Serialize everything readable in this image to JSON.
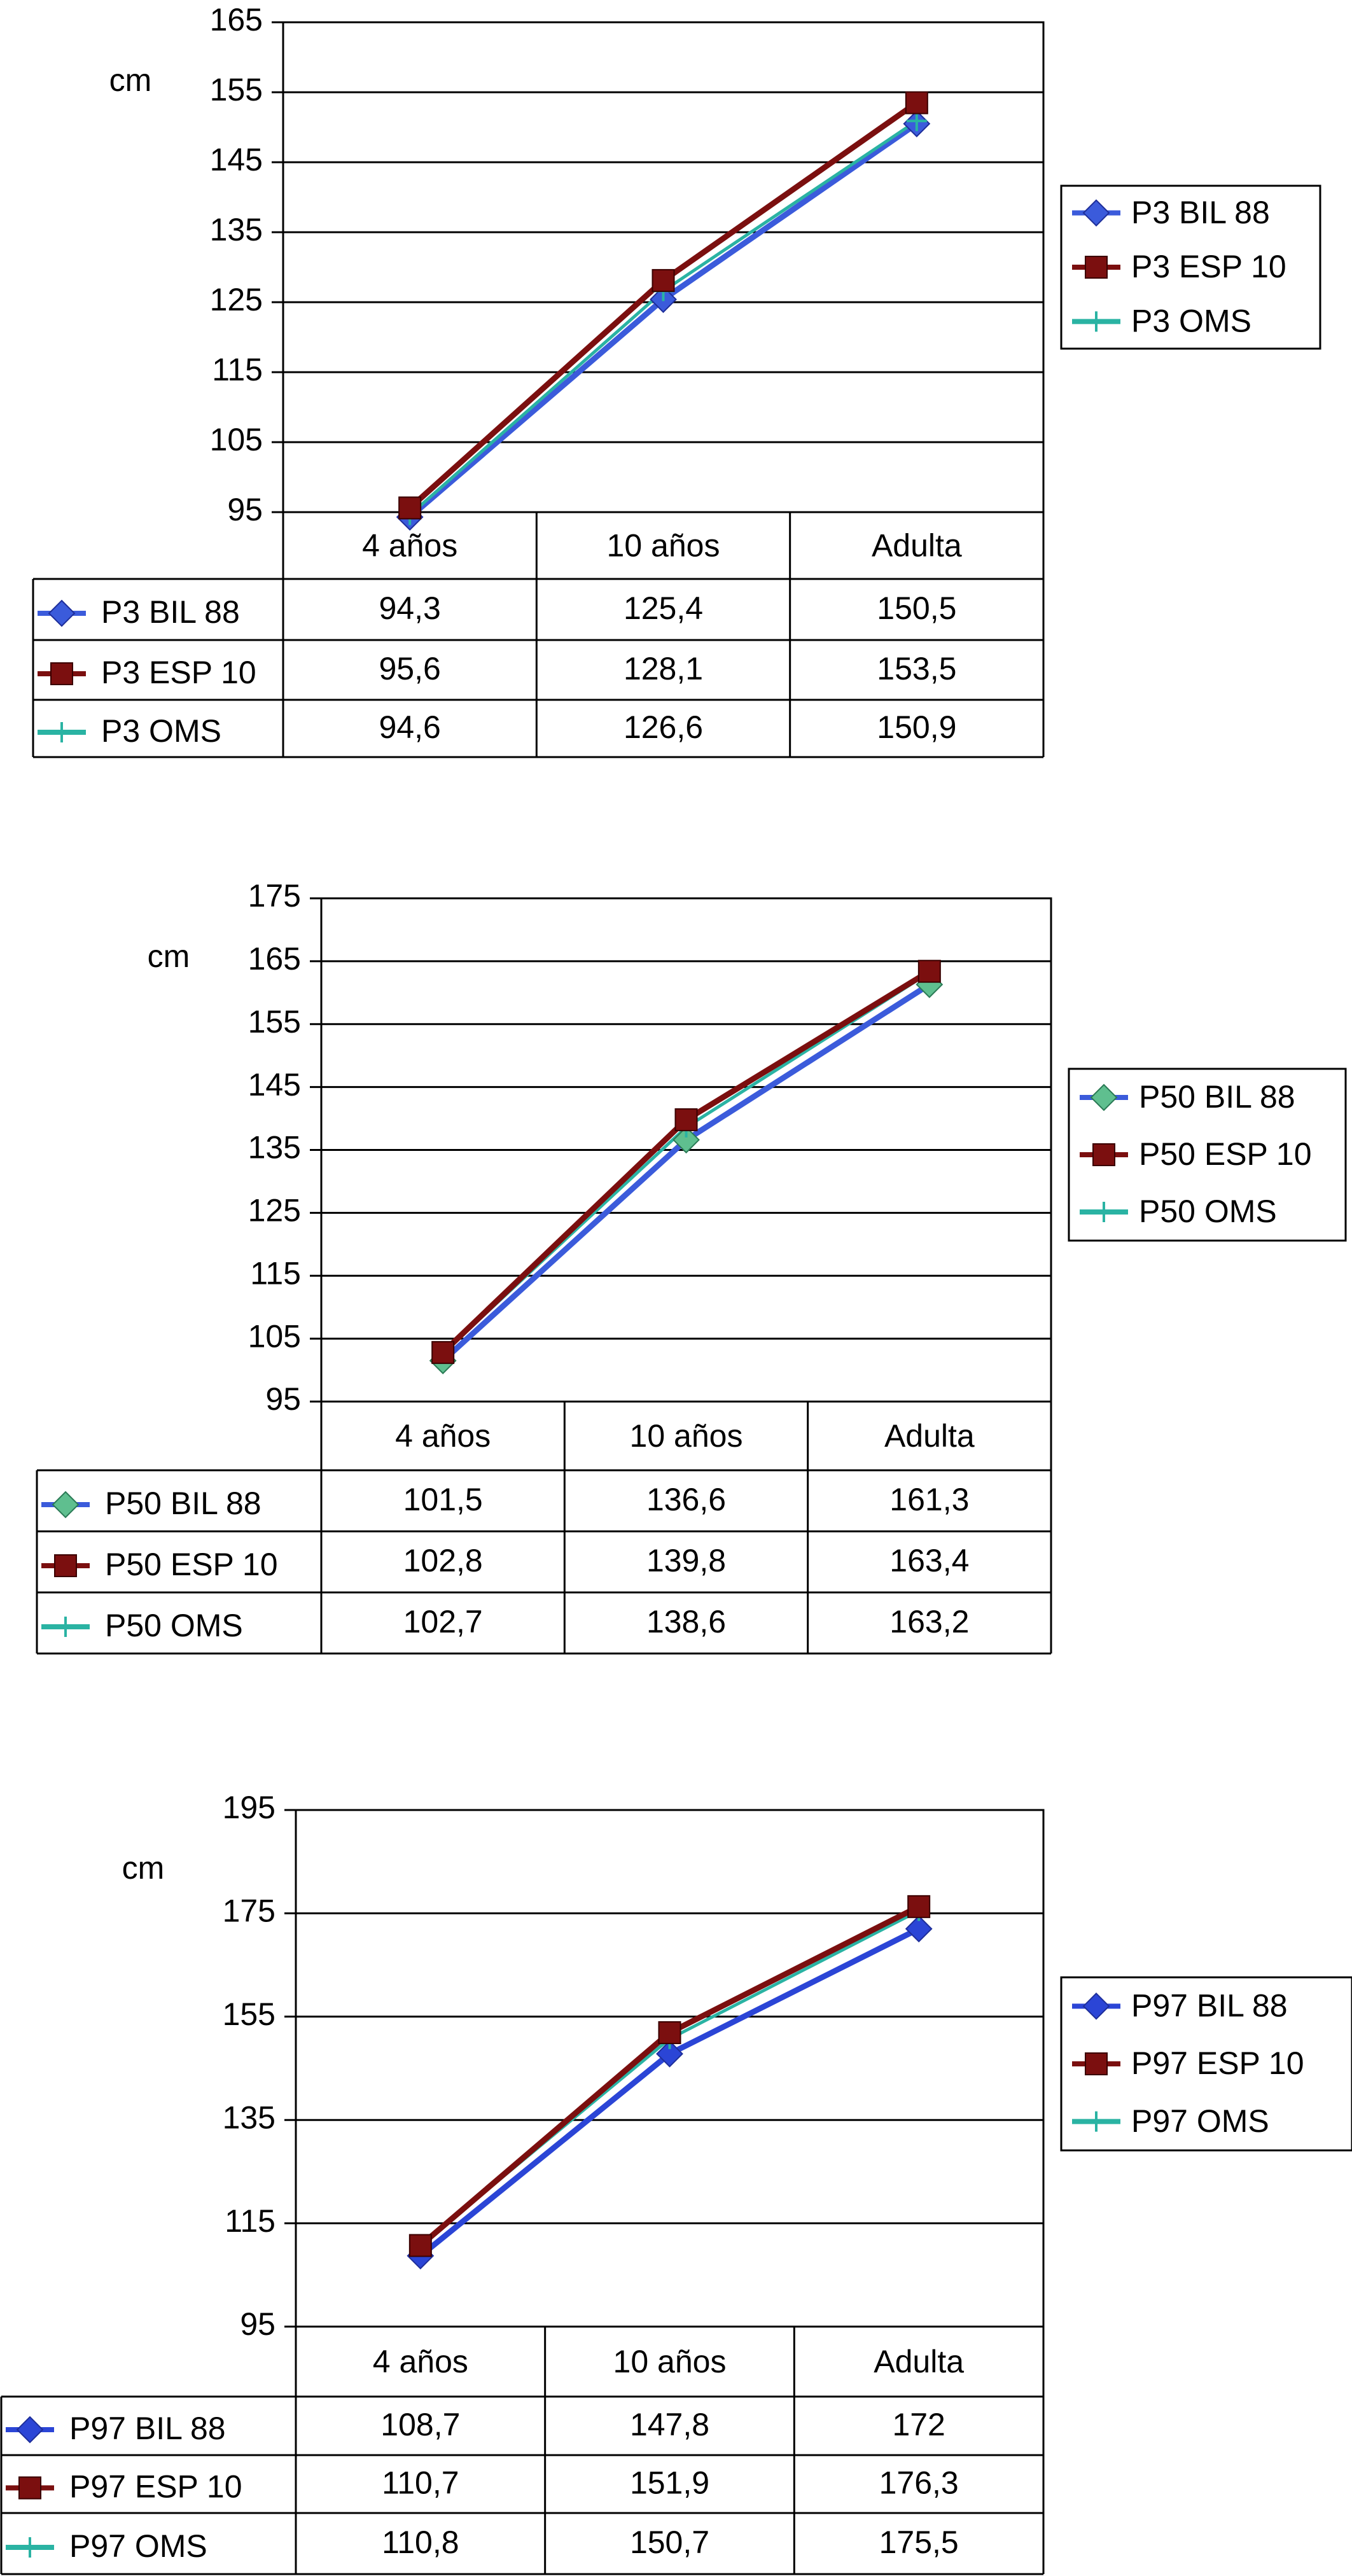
{
  "chart_data": [
    {
      "type": "line",
      "ylabel": "cm",
      "ylim": [
        95,
        165
      ],
      "yticks": [
        "165",
        "155",
        "145",
        "135",
        "125",
        "115",
        "105",
        "95"
      ],
      "categories": [
        "4 años",
        "10 años",
        "Adulta"
      ],
      "grid": true,
      "legend_placement": "right",
      "series": [
        {
          "name": "P3 BIL 88",
          "values": [
            94.3,
            125.4,
            150.5
          ],
          "labels": [
            "94,3",
            "125,4",
            "150,5"
          ],
          "color": "#3b5bdb",
          "marker": "diamond"
        },
        {
          "name": "P3 ESP 10",
          "values": [
            95.6,
            128.1,
            153.5
          ],
          "labels": [
            "95,6",
            "128,1",
            "153,5"
          ],
          "color": "#7b0f0f",
          "marker": "square"
        },
        {
          "name": "P3 OMS",
          "values": [
            94.6,
            126.6,
            150.9
          ],
          "labels": [
            "94,6",
            "126,6",
            "150,9"
          ],
          "color": "#2ab3a3",
          "marker": "plus"
        }
      ]
    },
    {
      "type": "line",
      "ylabel": "cm",
      "ylim": [
        95,
        175
      ],
      "yticks": [
        "175",
        "165",
        "155",
        "145",
        "135",
        "125",
        "115",
        "105",
        "95"
      ],
      "categories": [
        "4 años",
        "10 años",
        "Adulta"
      ],
      "grid": true,
      "legend_placement": "right",
      "series": [
        {
          "name": "P50 BIL 88",
          "values": [
            101.5,
            136.6,
            161.3
          ],
          "labels": [
            "101,5",
            "136,6",
            "161,3"
          ],
          "color": "#3b5bdb",
          "marker": "diamond-green"
        },
        {
          "name": "P50 ESP 10",
          "values": [
            102.8,
            139.8,
            163.4
          ],
          "labels": [
            "102,8",
            "139,8",
            "163,4"
          ],
          "color": "#7b0f0f",
          "marker": "square"
        },
        {
          "name": "P50 OMS",
          "values": [
            102.7,
            138.6,
            163.2
          ],
          "labels": [
            "102,7",
            "138,6",
            "163,2"
          ],
          "color": "#2ab3a3",
          "marker": "plus"
        }
      ]
    },
    {
      "type": "line",
      "ylabel": "cm",
      "ylim": [
        95,
        195
      ],
      "yticks": [
        "195",
        "175",
        "155",
        "135",
        "115",
        "95"
      ],
      "categories": [
        "4 años",
        "10 años",
        "Adulta"
      ],
      "grid": true,
      "legend_placement": "right",
      "series": [
        {
          "name": "P97 BIL 88",
          "values": [
            108.7,
            147.8,
            172
          ],
          "labels": [
            "108,7",
            "147,8",
            "172"
          ],
          "color": "#2b45d6",
          "marker": "diamond"
        },
        {
          "name": "P97 ESP 10",
          "values": [
            110.7,
            151.9,
            176.3
          ],
          "labels": [
            "110,7",
            "151,9",
            "176,3"
          ],
          "color": "#7b0f0f",
          "marker": "square"
        },
        {
          "name": "P97 OMS",
          "values": [
            110.8,
            150.7,
            175.5
          ],
          "labels": [
            "110,8",
            "150,7",
            "175,5"
          ],
          "color": "#2ab3a3",
          "marker": "plus"
        }
      ]
    }
  ]
}
